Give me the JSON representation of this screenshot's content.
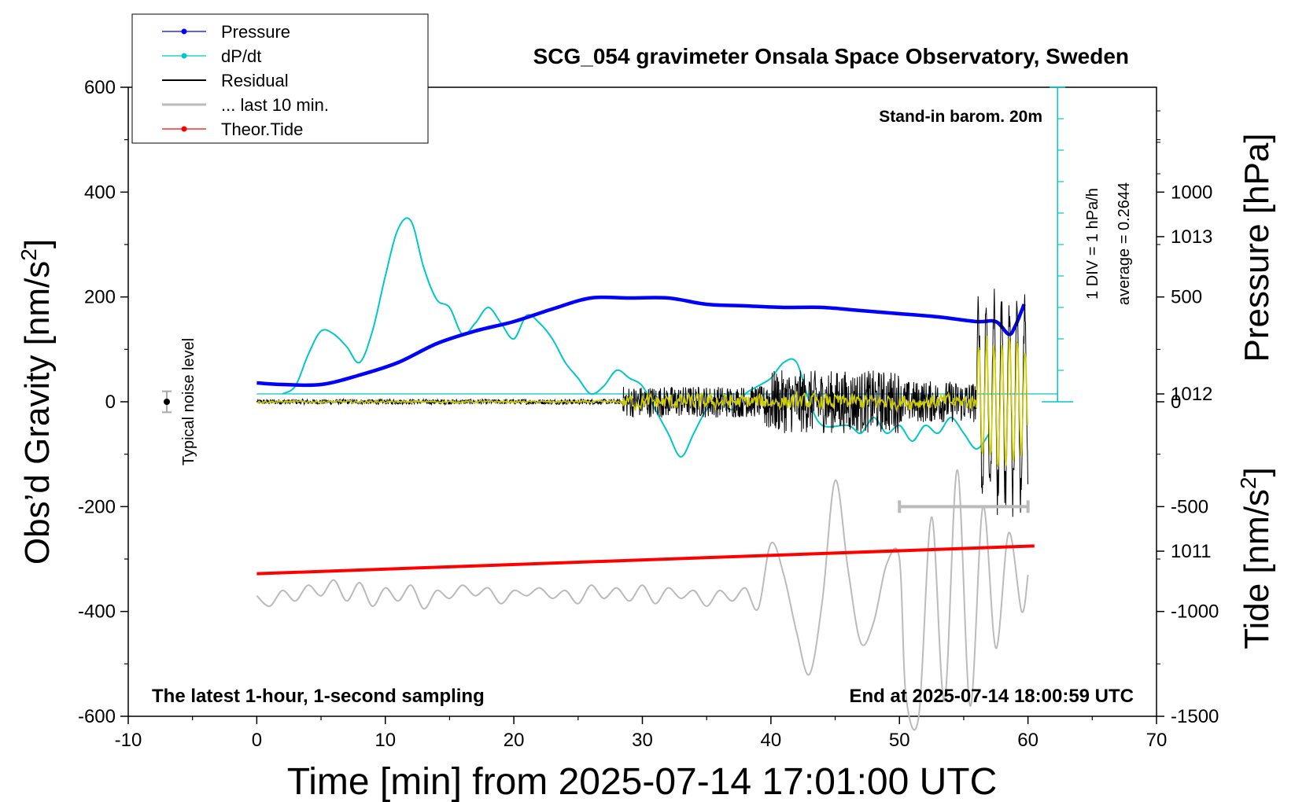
{
  "chart_data": {
    "type": "line",
    "title": "SCG_054 gravimeter Onsala Space Observatory, Sweden",
    "xlabel": "Time [min] from 2025-07-14 17:01:00 UTC",
    "ylabel_left_pre": "Obs’d Gravity [nm/s",
    "ylabel_left_sup": "2",
    "ylabel_left_post": "]",
    "ylabel_right_top": "Pressure [hPa]",
    "ylabel_right_bottom_pre": "Tide [nm/s",
    "ylabel_right_bottom_sup": "2",
    "ylabel_right_bottom_post": "]",
    "xlim": [
      -10,
      70
    ],
    "ylim": [
      -600,
      600
    ],
    "x_ticks": [
      -10,
      0,
      10,
      20,
      30,
      40,
      50,
      60,
      70
    ],
    "y_ticks": [
      -600,
      -400,
      -200,
      0,
      200,
      400,
      600
    ],
    "pressure_axis": {
      "ticks": [
        1011,
        1012,
        1013
      ],
      "range": [
        1009.95,
        1013.95
      ]
    },
    "tide_axis": {
      "ticks": [
        -1500,
        -1000,
        -500,
        0,
        500,
        1000
      ],
      "range": [
        -1500,
        1500
      ]
    },
    "legend": {
      "position": "top-left",
      "entries": [
        {
          "label": "Pressure",
          "color": "#0000ff",
          "marker": true
        },
        {
          "label": "dP/dt",
          "color": "#00c8c8",
          "marker": true
        },
        {
          "label": "Residual",
          "color": "#000000",
          "marker": false
        },
        {
          "label": "... last 10 min.",
          "color": "#bbbbbb",
          "marker": false
        },
        {
          "label": "Theor.Tide",
          "color": "#ff0000",
          "marker": true
        }
      ]
    },
    "annotations": {
      "barometer": "Stand-in barom. 20m",
      "dpdt_scale": "1 DIV = 1 hPa/h",
      "dpdt_average": "average = 0.2644",
      "noise": "Typical noise level",
      "sampling": "The latest 1-hour, 1-second sampling",
      "end_time": "End at 2025-07-14 18:00:59 UTC"
    },
    "series": [
      {
        "name": "Pressure",
        "unit": "hPa",
        "color": "#0000ff",
        "points": [
          [
            0,
            1012.07
          ],
          [
            2,
            1012.06
          ],
          [
            5,
            1012.06
          ],
          [
            8,
            1012.12
          ],
          [
            11,
            1012.2
          ],
          [
            14,
            1012.32
          ],
          [
            17,
            1012.4
          ],
          [
            20,
            1012.46
          ],
          [
            23,
            1012.54
          ],
          [
            26,
            1012.61
          ],
          [
            29,
            1012.61
          ],
          [
            32,
            1012.61
          ],
          [
            35,
            1012.57
          ],
          [
            38,
            1012.56
          ],
          [
            41,
            1012.55
          ],
          [
            44,
            1012.55
          ],
          [
            47,
            1012.53
          ],
          [
            50,
            1012.51
          ],
          [
            53,
            1012.49
          ],
          [
            56,
            1012.46
          ],
          [
            57.5,
            1012.46
          ],
          [
            58.5,
            1012.38
          ],
          [
            59,
            1012.43
          ],
          [
            59.7,
            1012.57
          ]
        ]
      },
      {
        "name": "dP/dt",
        "unit": "hPa/h",
        "color": "#00c8c8",
        "baseline": 1012,
        "points": [
          [
            2,
            1012.0
          ],
          [
            3,
            1012.05
          ],
          [
            4,
            1012.25
          ],
          [
            5,
            1012.4
          ],
          [
            6,
            1012.38
          ],
          [
            7,
            1012.3
          ],
          [
            8,
            1012.2
          ],
          [
            9,
            1012.4
          ],
          [
            10,
            1012.75
          ],
          [
            11,
            1013.05
          ],
          [
            12,
            1013.1
          ],
          [
            13,
            1012.8
          ],
          [
            14,
            1012.6
          ],
          [
            15,
            1012.55
          ],
          [
            16,
            1012.38
          ],
          [
            17,
            1012.45
          ],
          [
            18,
            1012.55
          ],
          [
            19,
            1012.45
          ],
          [
            20,
            1012.35
          ],
          [
            21,
            1012.5
          ],
          [
            22,
            1012.45
          ],
          [
            23,
            1012.35
          ],
          [
            24,
            1012.2
          ],
          [
            25,
            1012.1
          ],
          [
            26,
            1012.0
          ],
          [
            27,
            1012.05
          ],
          [
            28,
            1012.15
          ],
          [
            29,
            1012.1
          ],
          [
            30,
            1012.05
          ],
          [
            31,
            1011.9
          ],
          [
            32,
            1011.75
          ],
          [
            33,
            1011.6
          ],
          [
            34,
            1011.75
          ],
          [
            35,
            1011.9
          ],
          [
            36,
            1011.95
          ],
          [
            37,
            1011.9
          ],
          [
            38,
            1012.0
          ],
          [
            39,
            1012.05
          ],
          [
            40,
            1012.1
          ],
          [
            41,
            1012.2
          ],
          [
            42,
            1012.2
          ],
          [
            43,
            1011.95
          ],
          [
            44,
            1011.8
          ],
          [
            46,
            1011.8
          ],
          [
            47,
            1011.75
          ],
          [
            48,
            1011.85
          ],
          [
            49,
            1011.75
          ],
          [
            50,
            1011.8
          ],
          [
            51,
            1011.7
          ],
          [
            52,
            1011.8
          ],
          [
            53,
            1011.75
          ],
          [
            54,
            1011.85
          ],
          [
            55,
            1011.75
          ],
          [
            56,
            1011.65
          ],
          [
            57,
            1011.75
          ]
        ]
      },
      {
        "name": "Residual",
        "unit": "nm/s2",
        "color": "#000000",
        "segments": [
          {
            "x_range": [
              0,
              28.5
            ],
            "amplitude": 5
          },
          {
            "x_range": [
              28.5,
              39.5
            ],
            "amplitude": 30
          },
          {
            "x_range": [
              39.5,
              50
            ],
            "amplitude": 60
          },
          {
            "x_range": [
              50,
              56
            ],
            "amplitude": 40
          },
          {
            "x_range": [
              56,
              60
            ],
            "amplitude": 230
          }
        ]
      },
      {
        "name": "Residual (filtered)",
        "unit": "nm/s2",
        "color": "#cccc00",
        "segments": [
          {
            "x_range": [
              0,
              28.5
            ],
            "amplitude": 3
          },
          {
            "x_range": [
              28.5,
              56
            ],
            "amplitude": 20
          },
          {
            "x_range": [
              56,
              60
            ],
            "amplitude": 170
          }
        ]
      },
      {
        "name": "... last 10 min.",
        "unit": "nm/s2",
        "color": "#bbbbbb",
        "points": [
          [
            0,
            -370
          ],
          [
            1,
            -390
          ],
          [
            2,
            -360
          ],
          [
            3,
            -380
          ],
          [
            4,
            -350
          ],
          [
            5,
            -370
          ],
          [
            6,
            -340
          ],
          [
            7,
            -380
          ],
          [
            8,
            -345
          ],
          [
            9,
            -390
          ],
          [
            10,
            -355
          ],
          [
            11,
            -380
          ],
          [
            12,
            -350
          ],
          [
            13,
            -395
          ],
          [
            14,
            -360
          ],
          [
            15,
            -375
          ],
          [
            16,
            -350
          ],
          [
            17,
            -370
          ],
          [
            18,
            -355
          ],
          [
            19,
            -385
          ],
          [
            20,
            -360
          ],
          [
            21,
            -370
          ],
          [
            22,
            -355
          ],
          [
            23,
            -375
          ],
          [
            24,
            -360
          ],
          [
            25,
            -385
          ],
          [
            26,
            -350
          ],
          [
            27,
            -375
          ],
          [
            28,
            -355
          ],
          [
            29,
            -380
          ],
          [
            30,
            -350
          ],
          [
            31,
            -385
          ],
          [
            32,
            -355
          ],
          [
            33,
            -375
          ],
          [
            34,
            -360
          ],
          [
            35,
            -390
          ],
          [
            36,
            -360
          ],
          [
            37,
            -380
          ],
          [
            38,
            -355
          ],
          [
            39,
            -395
          ],
          [
            40,
            -270
          ],
          [
            41,
            -330
          ],
          [
            42,
            -440
          ],
          [
            43,
            -520
          ],
          [
            44,
            -380
          ],
          [
            45,
            -150
          ],
          [
            46,
            -320
          ],
          [
            47,
            -460
          ],
          [
            48,
            -420
          ],
          [
            49,
            -310
          ],
          [
            50,
            -300
          ],
          [
            50.5,
            -560
          ],
          [
            51.5,
            -600
          ],
          [
            52.5,
            -220
          ],
          [
            53.5,
            -570
          ],
          [
            54.5,
            -130
          ],
          [
            55.5,
            -580
          ],
          [
            56.5,
            -200
          ],
          [
            57.5,
            -470
          ],
          [
            58.5,
            -250
          ],
          [
            59.5,
            -400
          ],
          [
            60,
            -330
          ]
        ]
      },
      {
        "name": "Theor.Tide",
        "unit": "nm/s2",
        "color": "#ff0000",
        "points": [
          [
            0,
            -328
          ],
          [
            60.5,
            -275
          ]
        ]
      }
    ],
    "noise_level": {
      "x": -7,
      "y": 0,
      "error": 20
    },
    "last10_bar": {
      "x_range": [
        50,
        60
      ],
      "y": -200
    }
  }
}
